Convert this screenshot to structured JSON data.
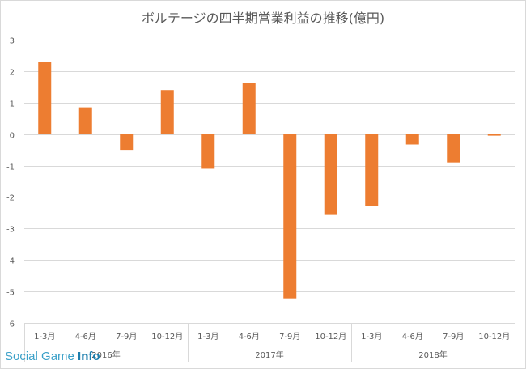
{
  "chart_data": {
    "type": "bar",
    "title": "ボルテージの四半期営業利益の推移(億円)",
    "ylim": [
      -6,
      3
    ],
    "yticks": [
      3,
      2,
      1,
      0,
      -1,
      -2,
      -3,
      -4,
      -5,
      -6
    ],
    "grid": true,
    "color": "#ED7D31",
    "categories": [
      "1-3月",
      "4-6月",
      "7-9月",
      "10-12月",
      "1-3月",
      "4-6月",
      "7-9月",
      "10-12月",
      "1-3月",
      "4-6月",
      "7-9月",
      "10-12月"
    ],
    "years": [
      "2016年",
      "2017年",
      "2018年"
    ],
    "values": [
      2.3,
      0.85,
      -0.5,
      1.4,
      -1.1,
      1.63,
      -5.22,
      -2.57,
      -2.28,
      -0.33,
      -0.9,
      -0.05
    ]
  },
  "watermark": {
    "part1": "Social Game ",
    "part2": "Info"
  }
}
